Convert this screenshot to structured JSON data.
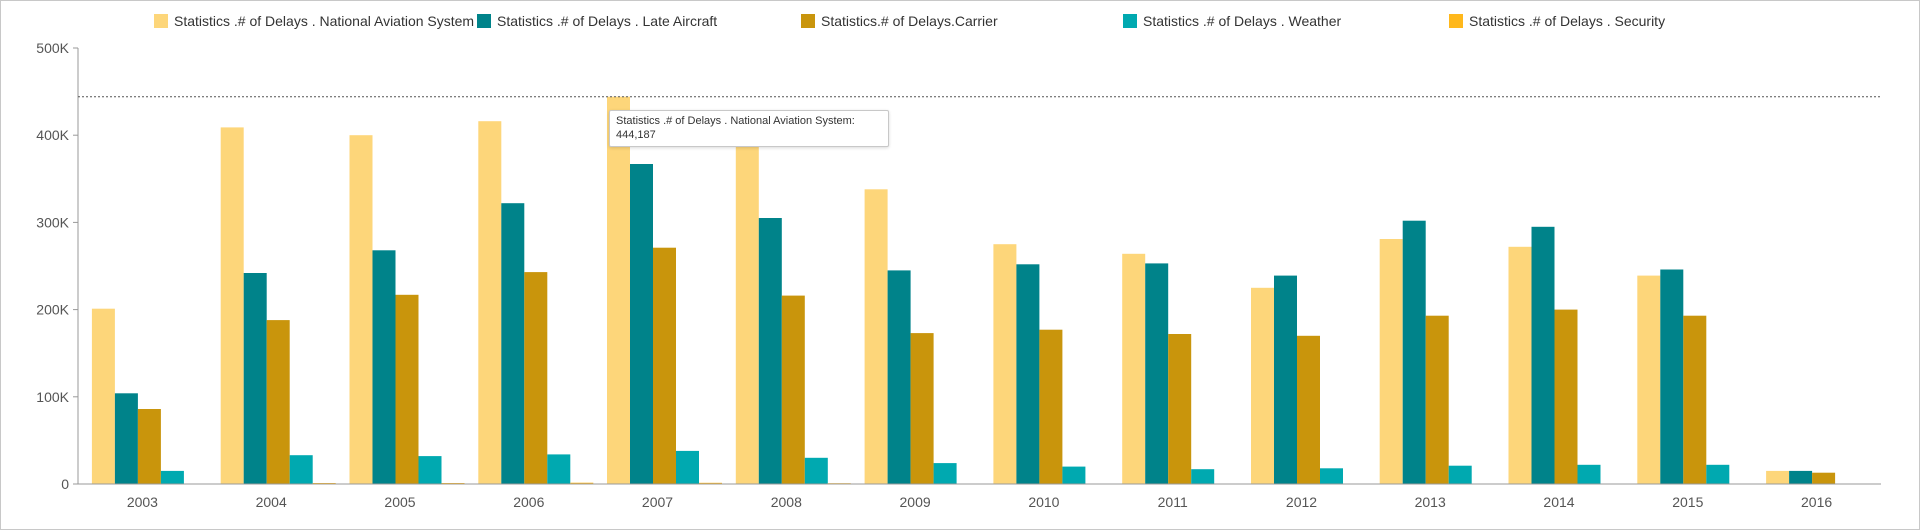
{
  "chart_data": {
    "type": "bar",
    "categories": [
      "2003",
      "2004",
      "2005",
      "2006",
      "2007",
      "2008",
      "2009",
      "2010",
      "2011",
      "2012",
      "2013",
      "2014",
      "2015",
      "2016"
    ],
    "series": [
      {
        "name": "Statistics .# of Delays . National Aviation System",
        "color": "#FDD67A",
        "values": [
          201000,
          409000,
          400000,
          416000,
          444187,
          408000,
          338000,
          275000,
          264000,
          225000,
          281000,
          272000,
          239000,
          15000
        ]
      },
      {
        "name": "Statistics .# of Delays . Late Aircraft",
        "color": "#00838A",
        "values": [
          104000,
          242000,
          268000,
          322000,
          367000,
          305000,
          245000,
          252000,
          253000,
          239000,
          302000,
          295000,
          246000,
          15000
        ]
      },
      {
        "name": "Statistics.# of Delays.Carrier",
        "color": "#C9950C",
        "values": [
          86000,
          188000,
          217000,
          243000,
          271000,
          216000,
          173000,
          177000,
          172000,
          170000,
          193000,
          200000,
          193000,
          13000
        ]
      },
      {
        "name": "Statistics .# of Delays . Weather",
        "color": "#00A9B0",
        "values": [
          15000,
          33000,
          32000,
          34000,
          38000,
          30000,
          24000,
          20000,
          17000,
          18000,
          21000,
          22000,
          22000,
          0
        ]
      },
      {
        "name": "Statistics .# of Delays . Security",
        "color": "#FFB81C",
        "values": [
          500,
          1200,
          1100,
          1500,
          1400,
          900,
          600,
          500,
          400,
          400,
          400,
          400,
          300,
          0
        ]
      }
    ],
    "y_ticks": [
      "0",
      "100K",
      "200K",
      "300K",
      "400K",
      "500K"
    ],
    "ylim": [
      0,
      500000
    ],
    "reference_line": 444187,
    "legend_position": "top",
    "grid": false
  },
  "tooltip": {
    "label": "Statistics .# of Delays . National Aviation System:",
    "value": "444,187"
  }
}
